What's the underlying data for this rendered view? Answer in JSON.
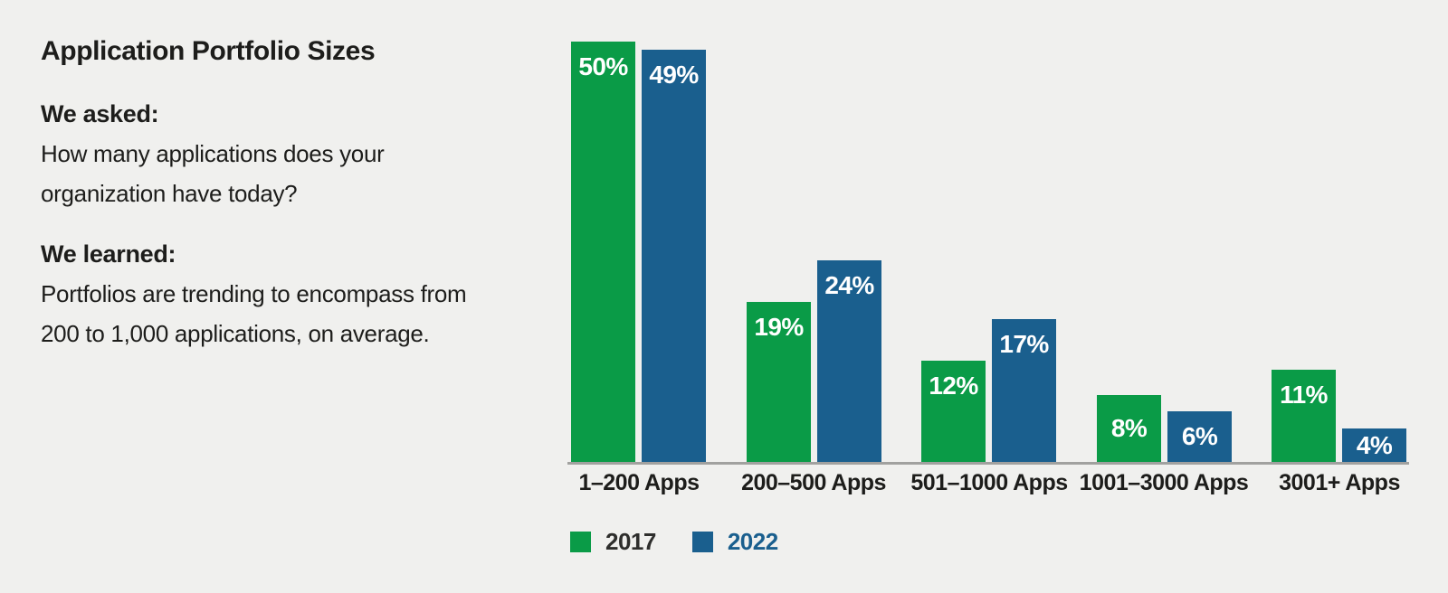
{
  "text_block": {
    "title": "Application Portfolio Sizes",
    "asked_heading": "We asked:",
    "asked_lines": [
      "How many applications does your",
      "organization have today?"
    ],
    "learned_heading": "We learned:",
    "learned_lines": [
      "Portfolios are trending to encompass from",
      "200 to 1,000 applications, on average."
    ]
  },
  "chart_data": {
    "type": "bar",
    "title": "Application Portfolio Sizes",
    "categories": [
      "1–200 Apps",
      "200–500 Apps",
      "501–1000 Apps",
      "1001–3000 Apps",
      "3001+ Apps"
    ],
    "series": [
      {
        "name": "2017",
        "color": "#0a9b47",
        "label_color": "#2e2e2c",
        "values": [
          50,
          19,
          12,
          8,
          11
        ]
      },
      {
        "name": "2022",
        "color": "#1a5f8e",
        "label_color": "#1a5f8e",
        "values": [
          49,
          24,
          17,
          6,
          4
        ]
      }
    ],
    "value_suffix": "%",
    "value_label_style": "white, bold, inside top of bar",
    "xlabel": "",
    "ylabel": "",
    "ylim": [
      0,
      52
    ],
    "grid": false,
    "axis_line_color": "#a1a19f",
    "legend_position": "bottom-left"
  },
  "colors": {
    "background": "#f0f0ee",
    "text": "#1d1d1b",
    "bar_2017": "#0a9b47",
    "bar_2022": "#1a5f8e",
    "value_label": "#ffffff",
    "axis": "#a1a19f"
  }
}
